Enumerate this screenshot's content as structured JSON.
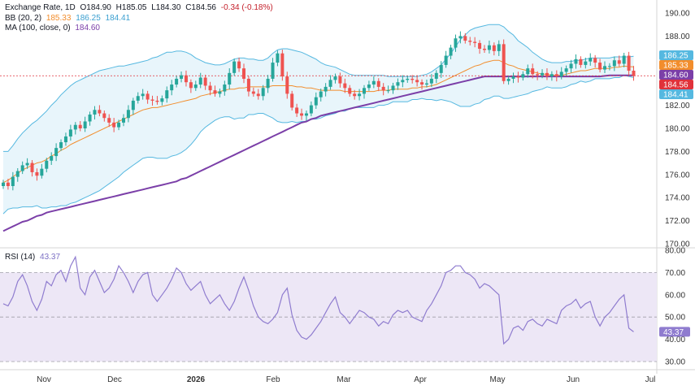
{
  "legend": {
    "symbol": "Exchange Rate, 1D",
    "open": "O184.90",
    "high": "H185.05",
    "low": "L184.30",
    "close": "C184.56",
    "change": "-0.34 (-0.18%)",
    "bb_label": "BB (20, 2)",
    "bb_mid": "185.33",
    "bb_upper": "186.25",
    "bb_lower": "184.41",
    "ma_label": "MA (100, close, 0)",
    "ma_value": "184.60",
    "rsi_label": "RSI (14)",
    "rsi_value": "43.37"
  },
  "colors": {
    "up": "#26a69a",
    "down": "#ef5350",
    "bb_band": "#55b8e0",
    "bb_fill": "#e8f5fb",
    "bb_mid": "#f28d2c",
    "ma": "#7b3fa8",
    "rsi_line": "#8f7ccf",
    "rsi_fill": "#ede7f6",
    "price_tag": "#e0323a"
  },
  "chart_data": [
    {
      "type": "candlestick",
      "title": "Exchange Rate, 1D",
      "ylim": [
        170,
        190
      ],
      "y_ticks": [
        "170.00",
        "172.00",
        "174.00",
        "176.00",
        "178.00",
        "180.00",
        "182.00",
        "184.00",
        "186.00",
        "188.00",
        "190.00"
      ],
      "x_ticks": [
        "Nov",
        "Dec",
        "2026",
        "Feb",
        "Mar",
        "Apr",
        "May",
        "Jun",
        "Jul"
      ],
      "bold_ticks": [
        "2026"
      ],
      "price_tags": [
        {
          "label": "186.25",
          "value": 186.25,
          "color": "#55b8e0"
        },
        {
          "label": "185.33",
          "value": 185.33,
          "color": "#f28d2c"
        },
        {
          "label": "184.60",
          "value": 184.6,
          "color": "#7b3fa8"
        },
        {
          "label": "184.56",
          "value": 184.56,
          "color": "#e0323a"
        },
        {
          "label": "184.41",
          "value": 184.41,
          "color": "#55b8e0"
        }
      ],
      "close": [
        175.3,
        175.0,
        175.8,
        176.3,
        176.8,
        177.0,
        176.2,
        175.9,
        176.5,
        177.2,
        177.6,
        178.3,
        178.8,
        179.3,
        179.9,
        180.3,
        180.0,
        180.6,
        181.2,
        181.6,
        181.3,
        180.9,
        180.5,
        180.1,
        180.5,
        180.9,
        181.6,
        182.4,
        182.8,
        183.0,
        182.5,
        182.4,
        182.3,
        182.6,
        183.3,
        183.8,
        184.3,
        184.6,
        184.0,
        183.5,
        183.8,
        184.4,
        183.7,
        183.3,
        183.0,
        183.2,
        183.8,
        184.8,
        185.8,
        185.2,
        184.3,
        183.2,
        183.0,
        182.8,
        183.5,
        184.3,
        185.7,
        186.5,
        184.5,
        183.0,
        181.8,
        181.3,
        181.1,
        181.3,
        182.0,
        182.7,
        183.2,
        183.6,
        184.2,
        184.5,
        183.9,
        183.5,
        183.0,
        182.8,
        183.0,
        183.5,
        183.8,
        184.1,
        183.6,
        183.3,
        183.3,
        183.7,
        184.0,
        184.2,
        184.3,
        184.2,
        184.0,
        183.8,
        183.9,
        184.3,
        184.8,
        185.5,
        186.3,
        187.0,
        187.8,
        188.0,
        187.6,
        187.5,
        187.4,
        186.9,
        186.8,
        187.2,
        186.7,
        187.3,
        184.1,
        184.3,
        184.5,
        184.4,
        184.7,
        185.2,
        184.7,
        184.6,
        184.8,
        184.5,
        184.7,
        184.5,
        184.9,
        185.2,
        185.6,
        186.0,
        185.5,
        185.8,
        186.1,
        185.7,
        185.1,
        185.4,
        185.4,
        185.9,
        185.6,
        186.3,
        185.0,
        184.56
      ],
      "bb_upper": [
        178.0,
        178.0,
        178.5,
        179.1,
        179.6,
        180.0,
        180.4,
        180.7,
        181.1,
        181.5,
        182.0,
        182.4,
        182.9,
        183.3,
        183.7,
        184.0,
        184.2,
        184.4,
        184.6,
        184.8,
        185.0,
        185.1,
        185.2,
        185.3,
        185.4,
        185.4,
        185.5,
        185.6,
        185.7,
        185.8,
        185.9,
        186.1,
        186.2,
        186.4,
        186.6,
        186.6,
        186.7,
        186.7,
        186.6,
        186.4,
        186.1,
        185.9,
        185.7,
        185.6,
        185.5,
        185.5,
        185.6,
        185.8,
        186.0,
        186.1,
        186.1,
        186.0,
        186.0,
        185.9,
        185.9,
        186.1,
        186.5,
        186.8,
        186.9,
        186.9,
        186.8,
        186.7,
        186.6,
        186.4,
        186.2,
        186.0,
        185.7,
        185.5,
        185.4,
        185.3,
        185.1,
        184.9,
        184.7,
        184.6,
        184.6,
        184.6,
        184.6,
        184.6,
        184.6,
        184.6,
        184.5,
        184.5,
        184.5,
        184.5,
        184.5,
        184.5,
        184.5,
        184.6,
        184.7,
        184.9,
        185.2,
        185.5,
        186.0,
        186.5,
        187.1,
        187.7,
        188.1,
        188.5,
        188.7,
        188.8,
        188.9,
        189.0,
        189.0,
        189.0,
        188.8,
        188.4,
        188.1,
        187.6,
        187.3,
        187.0,
        186.6,
        186.3,
        186.0,
        185.8,
        185.7,
        185.7,
        185.7,
        185.8,
        185.8,
        185.9,
        185.9,
        186.0,
        186.1,
        186.1,
        186.1,
        186.1,
        186.1,
        186.2,
        186.2,
        186.2,
        186.2,
        186.25
      ],
      "bb_mid": [
        175.3,
        175.5,
        175.8,
        176.1,
        176.4,
        176.6,
        176.8,
        177.0,
        177.1,
        177.3,
        177.6,
        177.8,
        178.1,
        178.3,
        178.6,
        178.8,
        179.0,
        179.2,
        179.4,
        179.6,
        179.8,
        180.0,
        180.2,
        180.4,
        180.6,
        180.8,
        181.0,
        181.2,
        181.4,
        181.6,
        181.7,
        181.8,
        181.8,
        181.9,
        182.0,
        182.1,
        182.2,
        182.3,
        182.4,
        182.5,
        182.6,
        182.8,
        182.9,
        183.0,
        183.1,
        183.2,
        183.3,
        183.4,
        183.4,
        183.5,
        183.5,
        183.6,
        183.6,
        183.6,
        183.6,
        183.6,
        183.7,
        183.7,
        183.7,
        183.7,
        183.7,
        183.6,
        183.6,
        183.5,
        183.5,
        183.4,
        183.3,
        183.3,
        183.3,
        183.3,
        183.3,
        183.2,
        183.2,
        183.2,
        183.2,
        183.2,
        183.2,
        183.2,
        183.3,
        183.3,
        183.3,
        183.4,
        183.4,
        183.4,
        183.4,
        183.5,
        183.5,
        183.6,
        183.6,
        183.7,
        183.8,
        184.0,
        184.2,
        184.4,
        184.6,
        184.8,
        185.0,
        185.2,
        185.4,
        185.5,
        185.7,
        185.8,
        185.9,
        185.9,
        185.7,
        185.5,
        185.4,
        185.2,
        185.1,
        185.0,
        184.9,
        184.8,
        184.7,
        184.7,
        184.6,
        184.6,
        184.6,
        184.7,
        184.8,
        184.9,
        185.0,
        185.0,
        185.1,
        185.2,
        185.2,
        185.2,
        185.2,
        185.3,
        185.3,
        185.4,
        185.35,
        185.33
      ],
      "bb_lower": [
        172.6,
        173.0,
        173.1,
        173.1,
        173.2,
        173.2,
        173.2,
        173.3,
        173.1,
        173.1,
        173.2,
        173.2,
        173.3,
        173.3,
        173.5,
        173.6,
        173.8,
        174.0,
        174.2,
        174.4,
        174.6,
        174.9,
        175.2,
        175.5,
        175.8,
        176.2,
        176.5,
        176.8,
        177.1,
        177.4,
        177.5,
        177.5,
        177.4,
        177.4,
        177.4,
        177.6,
        177.7,
        177.9,
        178.2,
        178.6,
        179.1,
        179.7,
        180.1,
        180.4,
        180.7,
        180.9,
        181.0,
        181.0,
        180.8,
        180.9,
        180.9,
        181.2,
        181.2,
        181.3,
        181.3,
        181.1,
        180.9,
        180.6,
        180.5,
        180.5,
        180.6,
        180.5,
        180.6,
        180.6,
        180.8,
        180.8,
        180.9,
        181.1,
        181.2,
        181.3,
        181.5,
        181.5,
        181.7,
        181.8,
        181.8,
        181.8,
        181.8,
        181.8,
        182.0,
        182.0,
        182.1,
        182.3,
        182.3,
        182.3,
        182.3,
        182.5,
        182.5,
        182.6,
        182.5,
        182.5,
        182.4,
        182.5,
        182.4,
        182.3,
        182.1,
        181.9,
        181.9,
        181.9,
        182.1,
        182.2,
        182.5,
        182.6,
        182.8,
        182.8,
        182.6,
        182.6,
        182.7,
        182.8,
        182.9,
        183.0,
        183.2,
        183.3,
        183.4,
        183.6,
        183.5,
        183.5,
        183.5,
        183.6,
        183.8,
        183.9,
        184.1,
        184.0,
        184.1,
        184.3,
        184.3,
        184.3,
        184.3,
        184.4,
        184.4,
        184.6,
        184.5,
        184.41
      ],
      "ma": [
        171.1,
        171.3,
        171.5,
        171.7,
        171.9,
        172.0,
        172.2,
        172.4,
        172.5,
        172.7,
        172.8,
        172.9,
        173.0,
        173.1,
        173.2,
        173.3,
        173.4,
        173.5,
        173.6,
        173.7,
        173.8,
        173.9,
        174.0,
        174.1,
        174.2,
        174.3,
        174.4,
        174.5,
        174.6,
        174.7,
        174.8,
        174.9,
        175.0,
        175.1,
        175.2,
        175.3,
        175.4,
        175.6,
        175.7,
        175.9,
        176.1,
        176.3,
        176.5,
        176.7,
        176.9,
        177.1,
        177.3,
        177.5,
        177.7,
        177.9,
        178.1,
        178.3,
        178.5,
        178.7,
        178.9,
        179.1,
        179.3,
        179.5,
        179.7,
        179.9,
        180.1,
        180.3,
        180.5,
        180.6,
        180.8,
        180.9,
        181.1,
        181.2,
        181.3,
        181.4,
        181.5,
        181.6,
        181.7,
        181.8,
        181.9,
        182.0,
        182.1,
        182.2,
        182.3,
        182.4,
        182.5,
        182.6,
        182.7,
        182.8,
        182.9,
        183.0,
        183.1,
        183.2,
        183.3,
        183.4,
        183.5,
        183.6,
        183.7,
        183.8,
        183.9,
        184.0,
        184.1,
        184.2,
        184.3,
        184.4,
        184.5,
        184.5,
        184.5,
        184.5,
        184.5,
        184.5,
        184.5,
        184.5,
        184.5,
        184.5,
        184.5,
        184.5,
        184.5,
        184.5,
        184.5,
        184.5,
        184.5,
        184.5,
        184.5,
        184.5,
        184.5,
        184.5,
        184.5,
        184.5,
        184.5,
        184.55,
        184.6,
        184.6,
        184.6,
        184.6,
        184.6,
        184.6
      ]
    },
    {
      "type": "line",
      "title": "RSI (14)",
      "ylim": [
        30,
        80
      ],
      "y_ticks": [
        "30.00",
        "40.00",
        "50.00",
        "60.00",
        "70.00",
        "80.00"
      ],
      "levels": [
        70,
        50,
        30
      ],
      "current_label": "43.37",
      "rsi": [
        56,
        55,
        59,
        66,
        69,
        64,
        57,
        53,
        58,
        66,
        64,
        69,
        71,
        66,
        73,
        77,
        63,
        60,
        68,
        71,
        66,
        61,
        63,
        67,
        73,
        70,
        66,
        61,
        66,
        69,
        70,
        60,
        57,
        60,
        63,
        67,
        72,
        70,
        65,
        62,
        64,
        66,
        60,
        56,
        58,
        60,
        56,
        53,
        57,
        63,
        68,
        62,
        55,
        50,
        48,
        47,
        49,
        52,
        60,
        63,
        51,
        44,
        41,
        40,
        42,
        45,
        48,
        52,
        56,
        59,
        52,
        50,
        47,
        50,
        53,
        52,
        50,
        49,
        46,
        48,
        47,
        51,
        53,
        52,
        53,
        50,
        49,
        48,
        53,
        56,
        60,
        64,
        70,
        71,
        73,
        73,
        70,
        69,
        67,
        63,
        65,
        64,
        62,
        60,
        38,
        40,
        45,
        46,
        44,
        48,
        49,
        47,
        46,
        49,
        48,
        47,
        53,
        55,
        56,
        58,
        54,
        56,
        57,
        50,
        46,
        50,
        52,
        55,
        58,
        60,
        45,
        43.37
      ]
    }
  ]
}
